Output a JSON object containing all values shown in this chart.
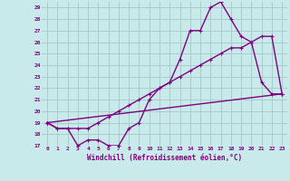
{
  "xlabel": "Windchill (Refroidissement éolien,°C)",
  "background_color": "#c8eaea",
  "line_color": "#800080",
  "grid_color": "#aacccc",
  "xlim": [
    -0.5,
    23.5
  ],
  "ylim": [
    17,
    29.5
  ],
  "yticks": [
    17,
    18,
    19,
    20,
    21,
    22,
    23,
    24,
    25,
    26,
    27,
    28,
    29
  ],
  "xticks": [
    0,
    1,
    2,
    3,
    4,
    5,
    6,
    7,
    8,
    9,
    10,
    11,
    12,
    13,
    14,
    15,
    16,
    17,
    18,
    19,
    20,
    21,
    22,
    23
  ],
  "line1_x": [
    0,
    1,
    2,
    3,
    4,
    5,
    6,
    7,
    8,
    9,
    10,
    11,
    12,
    13,
    14,
    15,
    16,
    17,
    18,
    19,
    20,
    21,
    22,
    23
  ],
  "line1_y": [
    19,
    18.5,
    18.5,
    17,
    17.5,
    17.5,
    17,
    17,
    18.5,
    19,
    21,
    22,
    22.5,
    24.5,
    27,
    27,
    29,
    29.5,
    28,
    26.5,
    26,
    22.5,
    21.5,
    21.5
  ],
  "line2_x": [
    0,
    1,
    2,
    3,
    4,
    5,
    6,
    7,
    8,
    9,
    10,
    11,
    12,
    13,
    14,
    15,
    16,
    17,
    18,
    19,
    20,
    21,
    22,
    23
  ],
  "line2_y": [
    19,
    18.5,
    18.5,
    18.5,
    18.5,
    19,
    19.5,
    20,
    20.5,
    21,
    21.5,
    22,
    22.5,
    23,
    23.5,
    24,
    24.5,
    25,
    25.5,
    25.5,
    26,
    26.5,
    26.5,
    21.5
  ],
  "line3_x": [
    0,
    23
  ],
  "line3_y": [
    19,
    21.5
  ],
  "marker_size": 3,
  "linewidth": 1.0
}
